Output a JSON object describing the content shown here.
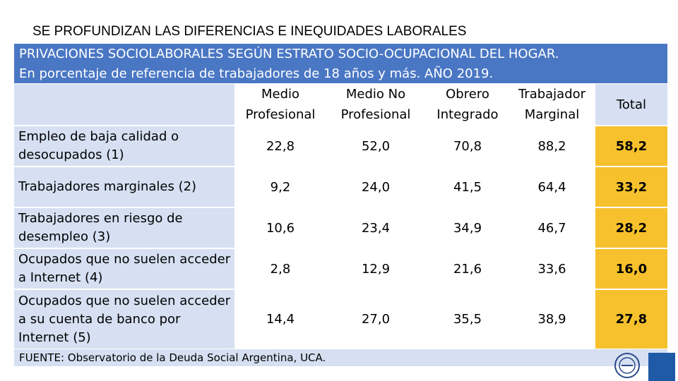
{
  "slide_title": "SE PROFUNDIZAN LAS DIFERENCIAS E INEQUIDADES LABORALES",
  "band": {
    "line1": "PRIVACIONES SOCIOLABORALES SEGÚN ESTRATO SOCIO-OCUPACIONAL DEL HOGAR.",
    "line2": "En porcentaje de referencia de trabajadores de 18 años y más. AÑO 2019."
  },
  "colors": {
    "header_band": "#4a77c4",
    "label_cells": "#d6e0f2",
    "total_cells": "#f6c12c",
    "corner_mark": "#1f5aa6"
  },
  "table": {
    "headers": [
      {
        "line1": "Medio",
        "line2": "Profesional"
      },
      {
        "line1": "Medio No",
        "line2": "Profesional"
      },
      {
        "line1": "Obrero",
        "line2": "Integrado"
      },
      {
        "line1": "Trabajador",
        "line2": "Marginal"
      }
    ],
    "total_header": "Total",
    "rows": [
      {
        "label": "Empleo de baja calidad o desocupados (1)",
        "values": [
          "22,8",
          "52,0",
          "70,8",
          "88,2"
        ],
        "total": "58,2"
      },
      {
        "label": "Trabajadores marginales (2)",
        "values": [
          "9,2",
          "24,0",
          "41,5",
          "64,4"
        ],
        "total": "33,2"
      },
      {
        "label": "Trabajadores en riesgo de desempleo (3)",
        "values": [
          "10,6",
          "23,4",
          "34,9",
          "46,7"
        ],
        "total": "28,2"
      },
      {
        "label": "Ocupados que no suelen acceder a Internet (4)",
        "values": [
          "2,8",
          "12,9",
          "21,6",
          "33,6"
        ],
        "total": "16,0"
      },
      {
        "label": "Ocupados que no suelen acceder a su cuenta de banco por Internet (5)",
        "values": [
          "14,4",
          "27,0",
          "35,5",
          "38,9"
        ],
        "total": "27,8"
      }
    ]
  },
  "source": "FUENTE: Observatorio de la Deuda Social Argentina, UCA.",
  "logo_icon": "university-seal-icon"
}
